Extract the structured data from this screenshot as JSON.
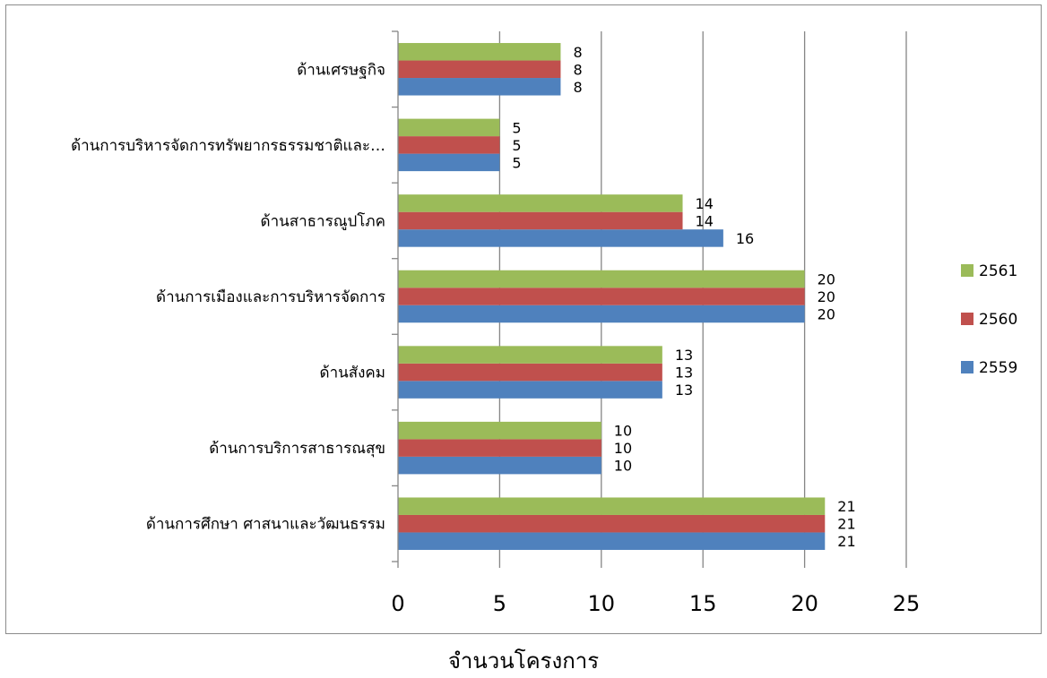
{
  "chart_data": {
    "type": "bar",
    "orientation": "horizontal",
    "categories": [
      "ด้านการศึกษา ศาสนาและวัฒนธรรม",
      "ด้านการบริการสาธารณสุข",
      "ด้านสังคม",
      "ด้านการเมืองและการบริหารจัดการ",
      "ด้านสาธารณูปโภค",
      "ด้านการบริหารจัดการทรัพยากรธรรมชาติและ…",
      "ด้านเศรษฐกิจ"
    ],
    "series": [
      {
        "name": "2559",
        "color": "#4f81bd",
        "values": [
          21,
          10,
          13,
          20,
          16,
          5,
          8
        ]
      },
      {
        "name": "2560",
        "color": "#c0504d",
        "values": [
          21,
          10,
          13,
          20,
          14,
          5,
          8
        ]
      },
      {
        "name": "2561",
        "color": "#9bbb59",
        "values": [
          21,
          10,
          13,
          20,
          14,
          5,
          8
        ]
      }
    ],
    "xlabel": "จำนวนโครงการ",
    "ylabel": "",
    "xlim": [
      0,
      25
    ],
    "xticks": [
      "0",
      "5",
      "10",
      "15",
      "20",
      "25"
    ],
    "grid": "vertical",
    "legend": "right",
    "data_labels": true
  }
}
